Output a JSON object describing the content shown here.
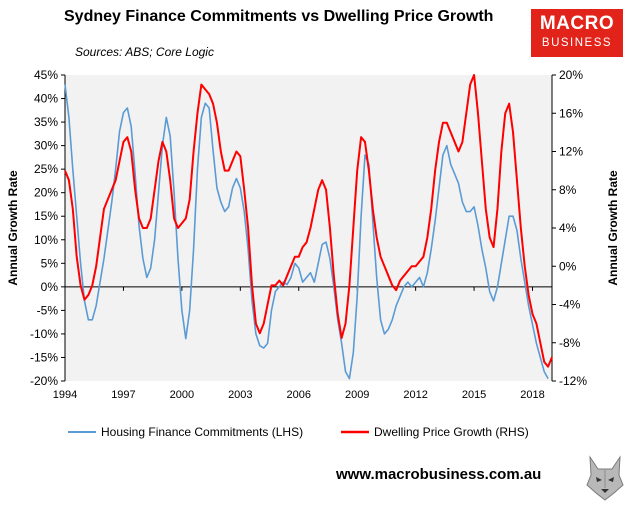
{
  "header": {
    "title": "Sydney Finance Commitments vs Dwelling Price Growth",
    "sources": "Sources: ABS; Core Logic"
  },
  "logo": {
    "line1": "MACRO",
    "line2": "BUSINESS"
  },
  "footer": {
    "url": "www.macrobusiness.com.au"
  },
  "chart_data": {
    "type": "line",
    "title": "Sydney Finance Commitments vs Dwelling Price Growth",
    "x_range": [
      1994.0,
      2019.0
    ],
    "x_ticks": [
      1994,
      1997,
      2000,
      2003,
      2006,
      2009,
      2012,
      2015,
      2018
    ],
    "x_tick_labels": [
      "1994",
      "1997",
      "2000",
      "2003",
      "2006",
      "2009",
      "2012",
      "2015",
      "2018"
    ],
    "y_left": {
      "label": "Annual Growth Rate",
      "range": [
        -20,
        45
      ],
      "ticks": [
        -20,
        -15,
        -10,
        -5,
        0,
        5,
        10,
        15,
        20,
        25,
        30,
        35,
        40,
        45
      ],
      "tick_labels": [
        "-20%",
        "-15%",
        "-10%",
        "-5%",
        "0%",
        "5%",
        "10%",
        "15%",
        "20%",
        "25%",
        "30%",
        "35%",
        "40%",
        "45%"
      ]
    },
    "y_right": {
      "label": "Annual Growth Rate",
      "range": [
        -12,
        20
      ],
      "ticks": [
        -12,
        -8,
        -4,
        0,
        4,
        8,
        12,
        16,
        20
      ],
      "tick_labels": [
        "-12%",
        "-8%",
        "-4%",
        "0%",
        "4%",
        "8%",
        "12%",
        "16%",
        "20%"
      ]
    },
    "grid": false,
    "background": "#f2f2f2",
    "legend_position": "bottom",
    "series": [
      {
        "name": "Housing Finance Commitments (LHS)",
        "axis": "left",
        "color": "#5b9bd5",
        "points": [
          [
            1994.0,
            43
          ],
          [
            1994.2,
            36
          ],
          [
            1994.4,
            25
          ],
          [
            1994.6,
            15
          ],
          [
            1994.8,
            5
          ],
          [
            1995.0,
            -3
          ],
          [
            1995.2,
            -7
          ],
          [
            1995.4,
            -7
          ],
          [
            1995.6,
            -4
          ],
          [
            1995.8,
            1
          ],
          [
            1996.0,
            6
          ],
          [
            1996.2,
            12
          ],
          [
            1996.4,
            18
          ],
          [
            1996.6,
            25
          ],
          [
            1996.8,
            33
          ],
          [
            1997.0,
            37
          ],
          [
            1997.2,
            38
          ],
          [
            1997.4,
            34
          ],
          [
            1997.6,
            24
          ],
          [
            1997.8,
            13
          ],
          [
            1998.0,
            6
          ],
          [
            1998.2,
            2
          ],
          [
            1998.4,
            4
          ],
          [
            1998.6,
            10
          ],
          [
            1998.8,
            20
          ],
          [
            1999.0,
            30
          ],
          [
            1999.2,
            36
          ],
          [
            1999.4,
            32
          ],
          [
            1999.6,
            20
          ],
          [
            1999.8,
            6
          ],
          [
            2000.0,
            -5
          ],
          [
            2000.2,
            -11
          ],
          [
            2000.4,
            -5
          ],
          [
            2000.6,
            8
          ],
          [
            2000.8,
            25
          ],
          [
            2001.0,
            36
          ],
          [
            2001.2,
            39
          ],
          [
            2001.4,
            38
          ],
          [
            2001.6,
            29
          ],
          [
            2001.8,
            21
          ],
          [
            2002.0,
            18
          ],
          [
            2002.2,
            16
          ],
          [
            2002.4,
            17
          ],
          [
            2002.6,
            21
          ],
          [
            2002.8,
            23
          ],
          [
            2003.0,
            21
          ],
          [
            2003.2,
            16
          ],
          [
            2003.4,
            8
          ],
          [
            2003.6,
            -3
          ],
          [
            2003.8,
            -10
          ],
          [
            2004.0,
            -12.5
          ],
          [
            2004.2,
            -13
          ],
          [
            2004.4,
            -12
          ],
          [
            2004.6,
            -5
          ],
          [
            2004.8,
            -1
          ],
          [
            2005.0,
            0
          ],
          [
            2005.2,
            1
          ],
          [
            2005.4,
            0.5
          ],
          [
            2005.6,
            2
          ],
          [
            2005.8,
            5
          ],
          [
            2006.0,
            4
          ],
          [
            2006.2,
            1
          ],
          [
            2006.4,
            2
          ],
          [
            2006.6,
            3
          ],
          [
            2006.8,
            1
          ],
          [
            2007.0,
            5
          ],
          [
            2007.2,
            9
          ],
          [
            2007.4,
            9.5
          ],
          [
            2007.6,
            6
          ],
          [
            2007.8,
            0
          ],
          [
            2008.0,
            -7
          ],
          [
            2008.2,
            -12
          ],
          [
            2008.4,
            -18
          ],
          [
            2008.6,
            -19.5
          ],
          [
            2008.8,
            -14
          ],
          [
            2009.0,
            -2
          ],
          [
            2009.2,
            15
          ],
          [
            2009.4,
            28
          ],
          [
            2009.6,
            26
          ],
          [
            2009.8,
            14
          ],
          [
            2010.0,
            2
          ],
          [
            2010.2,
            -7
          ],
          [
            2010.4,
            -10
          ],
          [
            2010.6,
            -9
          ],
          [
            2010.8,
            -7
          ],
          [
            2011.0,
            -4
          ],
          [
            2011.2,
            -2
          ],
          [
            2011.4,
            0
          ],
          [
            2011.6,
            1
          ],
          [
            2011.8,
            0
          ],
          [
            2012.0,
            1
          ],
          [
            2012.2,
            2
          ],
          [
            2012.4,
            0
          ],
          [
            2012.6,
            3
          ],
          [
            2012.8,
            8
          ],
          [
            2013.0,
            14
          ],
          [
            2013.2,
            21
          ],
          [
            2013.4,
            28
          ],
          [
            2013.6,
            30
          ],
          [
            2013.8,
            26
          ],
          [
            2014.0,
            24
          ],
          [
            2014.2,
            22
          ],
          [
            2014.4,
            18
          ],
          [
            2014.6,
            16
          ],
          [
            2014.8,
            16
          ],
          [
            2015.0,
            17
          ],
          [
            2015.2,
            13
          ],
          [
            2015.4,
            8
          ],
          [
            2015.6,
            4
          ],
          [
            2015.8,
            -1
          ],
          [
            2016.0,
            -3
          ],
          [
            2016.2,
            0
          ],
          [
            2016.4,
            5
          ],
          [
            2016.6,
            10
          ],
          [
            2016.8,
            15
          ],
          [
            2017.0,
            15
          ],
          [
            2017.2,
            12
          ],
          [
            2017.4,
            6
          ],
          [
            2017.6,
            1
          ],
          [
            2017.8,
            -4
          ],
          [
            2018.0,
            -8
          ],
          [
            2018.2,
            -12
          ],
          [
            2018.4,
            -15
          ],
          [
            2018.6,
            -18
          ],
          [
            2018.8,
            -19.5
          ]
        ]
      },
      {
        "name": "Dwelling Price Growth (RHS)",
        "axis": "right",
        "color": "#ff0000",
        "points": [
          [
            1994.0,
            10
          ],
          [
            1994.2,
            9
          ],
          [
            1994.4,
            6
          ],
          [
            1994.6,
            1
          ],
          [
            1994.8,
            -2
          ],
          [
            1995.0,
            -3.5
          ],
          [
            1995.2,
            -3
          ],
          [
            1995.4,
            -2
          ],
          [
            1995.6,
            0
          ],
          [
            1995.8,
            3
          ],
          [
            1996.0,
            6
          ],
          [
            1996.2,
            7
          ],
          [
            1996.4,
            8
          ],
          [
            1996.6,
            9
          ],
          [
            1996.8,
            11
          ],
          [
            1997.0,
            13
          ],
          [
            1997.2,
            13.5
          ],
          [
            1997.4,
            12
          ],
          [
            1997.6,
            8
          ],
          [
            1997.8,
            5
          ],
          [
            1998.0,
            4
          ],
          [
            1998.2,
            4
          ],
          [
            1998.4,
            5
          ],
          [
            1998.6,
            8
          ],
          [
            1998.8,
            11
          ],
          [
            1999.0,
            13
          ],
          [
            1999.2,
            12
          ],
          [
            1999.4,
            9
          ],
          [
            1999.6,
            5
          ],
          [
            1999.8,
            4
          ],
          [
            2000.0,
            4.5
          ],
          [
            2000.2,
            5
          ],
          [
            2000.4,
            7
          ],
          [
            2000.6,
            12
          ],
          [
            2000.8,
            16
          ],
          [
            2001.0,
            19
          ],
          [
            2001.2,
            18.5
          ],
          [
            2001.4,
            18
          ],
          [
            2001.6,
            17
          ],
          [
            2001.8,
            15
          ],
          [
            2002.0,
            12
          ],
          [
            2002.2,
            10
          ],
          [
            2002.4,
            10
          ],
          [
            2002.6,
            11
          ],
          [
            2002.8,
            12
          ],
          [
            2003.0,
            11.5
          ],
          [
            2003.2,
            8
          ],
          [
            2003.4,
            4
          ],
          [
            2003.6,
            -2
          ],
          [
            2003.8,
            -6
          ],
          [
            2004.0,
            -7
          ],
          [
            2004.2,
            -6
          ],
          [
            2004.4,
            -4
          ],
          [
            2004.6,
            -2
          ],
          [
            2004.8,
            -2
          ],
          [
            2005.0,
            -1.5
          ],
          [
            2005.2,
            -2
          ],
          [
            2005.4,
            -1
          ],
          [
            2005.6,
            0
          ],
          [
            2005.8,
            1
          ],
          [
            2006.0,
            1
          ],
          [
            2006.2,
            2
          ],
          [
            2006.4,
            2.5
          ],
          [
            2006.6,
            4
          ],
          [
            2006.8,
            6
          ],
          [
            2007.0,
            8
          ],
          [
            2007.2,
            9
          ],
          [
            2007.4,
            8
          ],
          [
            2007.6,
            4
          ],
          [
            2007.8,
            -1
          ],
          [
            2008.0,
            -5
          ],
          [
            2008.2,
            -7.5
          ],
          [
            2008.4,
            -6
          ],
          [
            2008.6,
            -2
          ],
          [
            2008.8,
            4
          ],
          [
            2009.0,
            10
          ],
          [
            2009.2,
            13.5
          ],
          [
            2009.4,
            13
          ],
          [
            2009.6,
            10
          ],
          [
            2009.8,
            6
          ],
          [
            2010.0,
            3
          ],
          [
            2010.2,
            1
          ],
          [
            2010.4,
            0
          ],
          [
            2010.6,
            -1
          ],
          [
            2010.8,
            -2
          ],
          [
            2011.0,
            -2.5
          ],
          [
            2011.2,
            -1.5
          ],
          [
            2011.4,
            -1
          ],
          [
            2011.6,
            -0.5
          ],
          [
            2011.8,
            0
          ],
          [
            2012.0,
            0
          ],
          [
            2012.2,
            0.5
          ],
          [
            2012.4,
            1
          ],
          [
            2012.6,
            3
          ],
          [
            2012.8,
            6
          ],
          [
            2013.0,
            10
          ],
          [
            2013.2,
            13
          ],
          [
            2013.4,
            15
          ],
          [
            2013.6,
            15
          ],
          [
            2013.8,
            14
          ],
          [
            2014.0,
            13
          ],
          [
            2014.2,
            12
          ],
          [
            2014.4,
            13
          ],
          [
            2014.6,
            16
          ],
          [
            2014.8,
            19
          ],
          [
            2015.0,
            20
          ],
          [
            2015.2,
            16
          ],
          [
            2015.4,
            11
          ],
          [
            2015.6,
            6
          ],
          [
            2015.8,
            3
          ],
          [
            2016.0,
            2
          ],
          [
            2016.2,
            6
          ],
          [
            2016.4,
            12
          ],
          [
            2016.6,
            16
          ],
          [
            2016.8,
            17
          ],
          [
            2017.0,
            14
          ],
          [
            2017.2,
            9
          ],
          [
            2017.4,
            4
          ],
          [
            2017.6,
            0
          ],
          [
            2017.8,
            -3
          ],
          [
            2018.0,
            -5
          ],
          [
            2018.2,
            -6
          ],
          [
            2018.4,
            -8
          ],
          [
            2018.6,
            -10
          ],
          [
            2018.8,
            -10.5
          ],
          [
            2019.0,
            -9.5
          ]
        ]
      }
    ]
  }
}
